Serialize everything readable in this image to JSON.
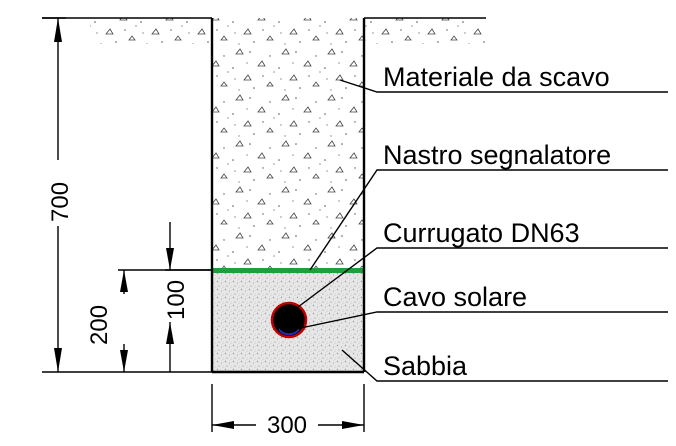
{
  "labels": {
    "material": "Materiale da scavo",
    "tape": "Nastro segnalatore",
    "conduit": "Currugato DN63",
    "cable": "Cavo solare",
    "sand": "Sabbia"
  },
  "dimensions": {
    "total_depth": "700",
    "sand_height": "200",
    "cable_depth": "100",
    "trench_width": "300"
  },
  "colors": {
    "tape": "#1f9e3a",
    "conduit_ring": "#c00000",
    "cable_core": "#000000",
    "cable_water": "#2030c0"
  }
}
